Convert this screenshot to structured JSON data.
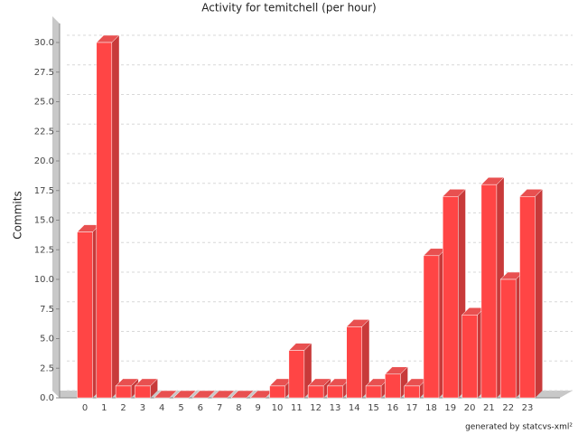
{
  "chart_data": {
    "type": "bar3d",
    "title": "Activity for temitchell (per hour)",
    "y_label": "Commits",
    "footer": "generated by statcvs-xml²",
    "categories": [
      "0",
      "1",
      "2",
      "3",
      "4",
      "5",
      "6",
      "7",
      "8",
      "9",
      "10",
      "11",
      "12",
      "13",
      "14",
      "15",
      "16",
      "17",
      "18",
      "19",
      "20",
      "21",
      "22",
      "23"
    ],
    "values": [
      14,
      30,
      1,
      1,
      0,
      0,
      0,
      0,
      0,
      0,
      1,
      4,
      1,
      1,
      6,
      1,
      2,
      1,
      12,
      17,
      7,
      18,
      10,
      17
    ],
    "color": "#ff4545",
    "ylim": [
      0,
      30
    ],
    "yticks": [
      {
        "value": 0,
        "label": "0.0"
      },
      {
        "value": 2.5,
        "label": "2.5"
      },
      {
        "value": 5,
        "label": "5.0"
      },
      {
        "value": 7.5,
        "label": "7.5"
      },
      {
        "value": 10,
        "label": "10.0"
      },
      {
        "value": 12.5,
        "label": "12.5"
      },
      {
        "value": 15,
        "label": "15.0"
      },
      {
        "value": 17.5,
        "label": "17.5"
      },
      {
        "value": 20,
        "label": "20.0"
      },
      {
        "value": 22.5,
        "label": "22.5"
      },
      {
        "value": 25,
        "label": "25.0"
      },
      {
        "value": 27.5,
        "label": "27.5"
      },
      {
        "value": 30,
        "label": "30.0"
      }
    ],
    "grid": true
  }
}
